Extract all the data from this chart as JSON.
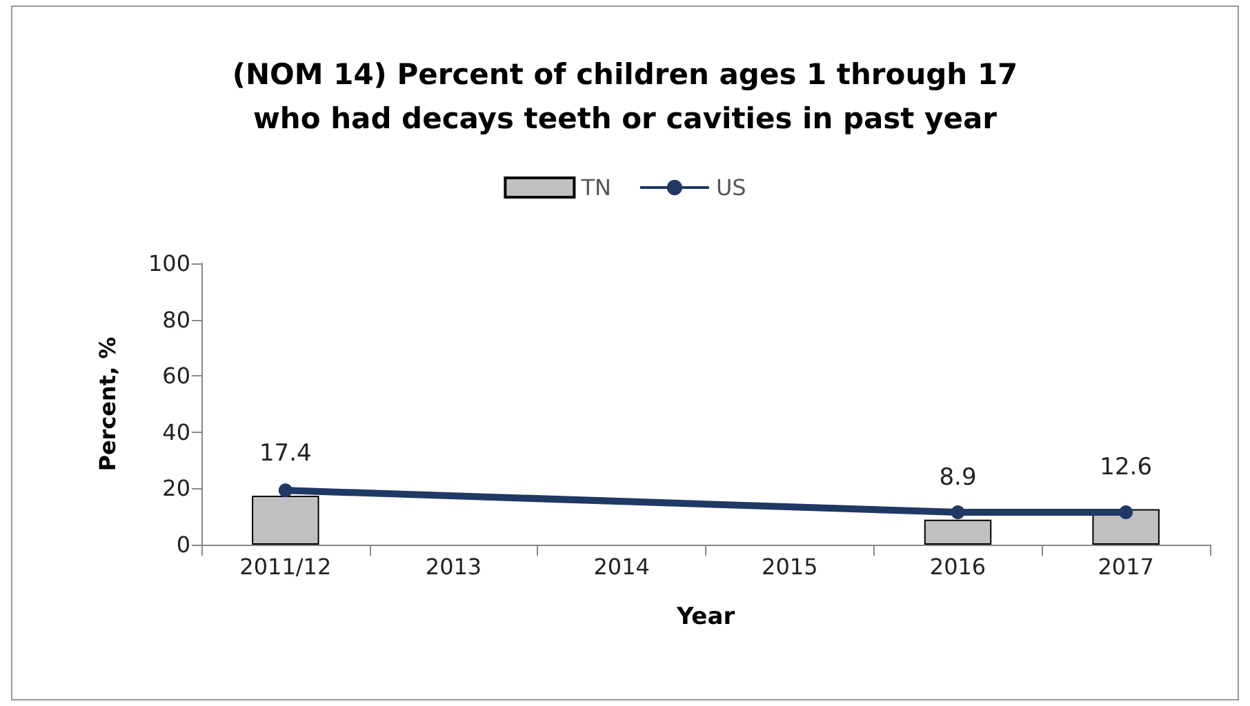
{
  "chart_data": {
    "type": "bar",
    "title": "(NOM 14) Percent of children ages 1 through 17\nwho had decays teeth or cavities in past year",
    "xlabel": "Year",
    "ylabel": "Percent, %",
    "categories": [
      "2011/12",
      "2013",
      "2014",
      "2015",
      "2016",
      "2017"
    ],
    "series": [
      {
        "name": "TN",
        "color": "#c0c0c0",
        "values": [
          17.4,
          null,
          null,
          null,
          8.9,
          12.6
        ],
        "value_labels": [
          "17.4",
          null,
          null,
          null,
          "8.9",
          "12.6"
        ]
      },
      {
        "name": "US",
        "type": "line",
        "color": "#1f3864",
        "values": [
          19.3,
          null,
          null,
          null,
          11.5,
          11.5
        ]
      }
    ],
    "ylim": [
      0,
      100
    ],
    "yticks": [
      0,
      20,
      40,
      60,
      80,
      100
    ],
    "grid": false,
    "legend": "top",
    "marker": "circle",
    "line_style": "solid"
  }
}
